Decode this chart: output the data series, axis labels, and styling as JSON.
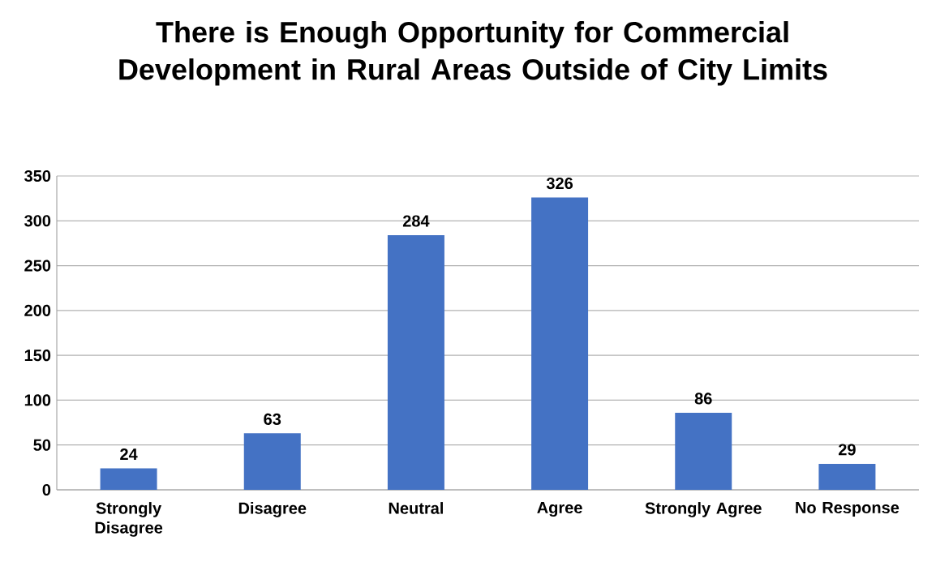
{
  "chart_data": {
    "type": "bar",
    "title": "There is Enough Opportunity for Commercial Development in Rural Areas Outside of City Limits",
    "categories": [
      "Strongly Disagree",
      "Disagree",
      "Neutral",
      "Agree",
      "Strongly Agree",
      "No Response"
    ],
    "values": [
      24,
      63,
      284,
      326,
      86,
      29
    ],
    "color": "#4472c4",
    "ylim": [
      0,
      350
    ],
    "yticks": [
      0,
      50,
      100,
      150,
      200,
      250,
      300,
      350
    ],
    "grid": "y",
    "data_labels": true
  }
}
